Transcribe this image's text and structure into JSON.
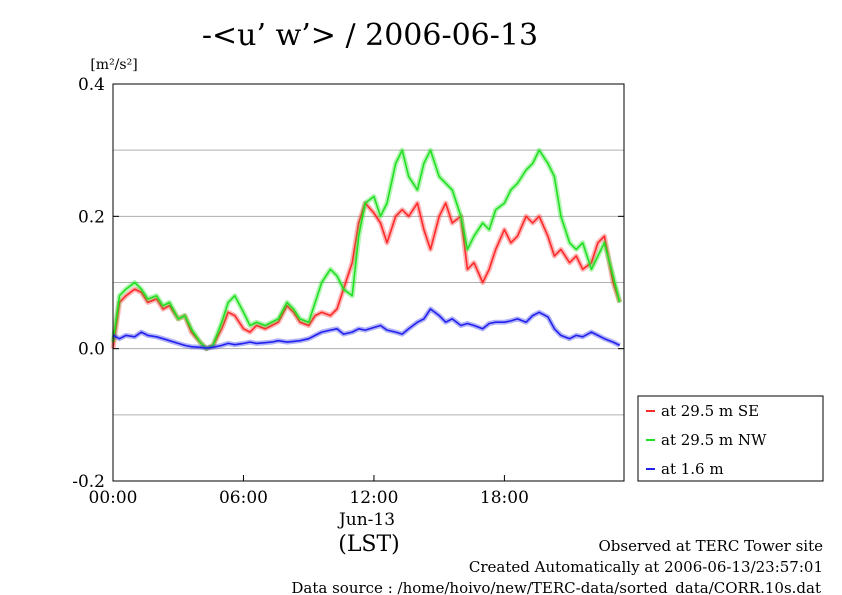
{
  "chart_data": {
    "type": "line",
    "title": "-<u’ w’> / 2006-06-13",
    "ylabel": "[m²/s²]",
    "xlabel": "(LST)",
    "date_label": "Jun-13",
    "xlim": [
      0,
      23.5
    ],
    "ylim": [
      -0.2,
      0.4
    ],
    "x_ticks": [
      0,
      6,
      12,
      18
    ],
    "x_tick_labels": [
      "00:00",
      "06:00",
      "12:00",
      "18:00"
    ],
    "y_ticks": [
      -0.2,
      0.0,
      0.2,
      0.4
    ],
    "y_tick_labels": [
      "-0.2",
      "0.0",
      "0.2",
      "0.4"
    ],
    "grid": "horizontal",
    "legend_position": "right",
    "series": [
      {
        "name": "at 29.5 m SE",
        "color": "#ff2a2a",
        "x": [
          0,
          0.3,
          0.6,
          1,
          1.3,
          1.6,
          2,
          2.3,
          2.6,
          3,
          3.3,
          3.6,
          4,
          4.3,
          4.6,
          5,
          5.3,
          5.6,
          6,
          6.3,
          6.6,
          7,
          7.3,
          7.6,
          8,
          8.3,
          8.6,
          9,
          9.3,
          9.6,
          10,
          10.3,
          10.6,
          11,
          11.3,
          11.6,
          12,
          12.3,
          12.6,
          13,
          13.3,
          13.6,
          14,
          14.3,
          14.6,
          15,
          15.3,
          15.6,
          16,
          16.3,
          16.6,
          17,
          17.3,
          17.6,
          18,
          18.3,
          18.6,
          19,
          19.3,
          19.6,
          20,
          20.3,
          20.6,
          21,
          21.3,
          21.6,
          22,
          22.3,
          22.6,
          23,
          23.3
        ],
        "y": [
          0.0,
          0.07,
          0.08,
          0.09,
          0.085,
          0.07,
          0.075,
          0.06,
          0.065,
          0.045,
          0.05,
          0.025,
          0.01,
          0.0,
          0.005,
          0.03,
          0.055,
          0.05,
          0.03,
          0.025,
          0.035,
          0.03,
          0.035,
          0.04,
          0.065,
          0.055,
          0.04,
          0.035,
          0.05,
          0.055,
          0.05,
          0.06,
          0.09,
          0.13,
          0.19,
          0.22,
          0.205,
          0.19,
          0.16,
          0.2,
          0.21,
          0.2,
          0.22,
          0.18,
          0.15,
          0.2,
          0.22,
          0.19,
          0.2,
          0.12,
          0.13,
          0.1,
          0.12,
          0.15,
          0.18,
          0.16,
          0.17,
          0.2,
          0.19,
          0.2,
          0.17,
          0.14,
          0.15,
          0.13,
          0.14,
          0.12,
          0.13,
          0.16,
          0.17,
          0.1,
          0.07
        ]
      },
      {
        "name": "at 29.5 m NW",
        "color": "#22e022",
        "x": [
          0,
          0.3,
          0.6,
          1,
          1.3,
          1.6,
          2,
          2.3,
          2.6,
          3,
          3.3,
          3.6,
          4,
          4.3,
          4.6,
          5,
          5.3,
          5.6,
          6,
          6.3,
          6.6,
          7,
          7.3,
          7.6,
          8,
          8.3,
          8.6,
          9,
          9.3,
          9.6,
          10,
          10.3,
          10.6,
          11,
          11.3,
          11.6,
          12,
          12.3,
          12.6,
          13,
          13.3,
          13.6,
          14,
          14.3,
          14.6,
          15,
          15.3,
          15.6,
          16,
          16.3,
          16.6,
          17,
          17.3,
          17.6,
          18,
          18.3,
          18.6,
          19,
          19.3,
          19.6,
          20,
          20.3,
          20.6,
          21,
          21.3,
          21.6,
          22,
          22.3,
          22.6,
          23,
          23.3
        ],
        "y": [
          0.01,
          0.08,
          0.09,
          0.1,
          0.09,
          0.075,
          0.08,
          0.065,
          0.07,
          0.045,
          0.05,
          0.03,
          0.01,
          0.0,
          0.005,
          0.04,
          0.07,
          0.08,
          0.055,
          0.035,
          0.04,
          0.035,
          0.04,
          0.045,
          0.07,
          0.06,
          0.045,
          0.04,
          0.07,
          0.1,
          0.12,
          0.11,
          0.09,
          0.08,
          0.17,
          0.22,
          0.23,
          0.2,
          0.22,
          0.28,
          0.3,
          0.26,
          0.24,
          0.28,
          0.3,
          0.26,
          0.25,
          0.24,
          0.2,
          0.15,
          0.17,
          0.19,
          0.18,
          0.21,
          0.22,
          0.24,
          0.25,
          0.27,
          0.28,
          0.3,
          0.28,
          0.26,
          0.2,
          0.16,
          0.15,
          0.16,
          0.12,
          0.14,
          0.16,
          0.11,
          0.07
        ]
      },
      {
        "name": "at 1.6 m",
        "color": "#2222ee",
        "x": [
          0,
          0.3,
          0.6,
          1,
          1.3,
          1.6,
          2,
          2.3,
          2.6,
          3,
          3.3,
          3.6,
          4,
          4.3,
          4.6,
          5,
          5.3,
          5.6,
          6,
          6.3,
          6.6,
          7,
          7.3,
          7.6,
          8,
          8.3,
          8.6,
          9,
          9.3,
          9.6,
          10,
          10.3,
          10.6,
          11,
          11.3,
          11.6,
          12,
          12.3,
          12.6,
          13,
          13.3,
          13.6,
          14,
          14.3,
          14.6,
          15,
          15.3,
          15.6,
          16,
          16.3,
          16.6,
          17,
          17.3,
          17.6,
          18,
          18.3,
          18.6,
          19,
          19.3,
          19.6,
          20,
          20.3,
          20.6,
          21,
          21.3,
          21.6,
          22,
          22.3,
          22.6,
          23,
          23.3
        ],
        "y": [
          0.02,
          0.015,
          0.02,
          0.018,
          0.025,
          0.02,
          0.018,
          0.015,
          0.012,
          0.008,
          0.005,
          0.003,
          0.002,
          0.001,
          0.002,
          0.005,
          0.008,
          0.006,
          0.008,
          0.01,
          0.008,
          0.009,
          0.01,
          0.012,
          0.01,
          0.011,
          0.012,
          0.015,
          0.02,
          0.025,
          0.028,
          0.03,
          0.022,
          0.025,
          0.03,
          0.028,
          0.032,
          0.035,
          0.028,
          0.025,
          0.022,
          0.03,
          0.04,
          0.045,
          0.06,
          0.05,
          0.04,
          0.045,
          0.035,
          0.038,
          0.035,
          0.03,
          0.038,
          0.04,
          0.04,
          0.042,
          0.045,
          0.04,
          0.05,
          0.055,
          0.048,
          0.03,
          0.02,
          0.015,
          0.02,
          0.018,
          0.025,
          0.02,
          0.015,
          0.01,
          0.005
        ]
      }
    ]
  },
  "footer": {
    "line1": "Observed at TERC Tower site",
    "line2": "Created Automatically at 2006-06-13/23:57:01",
    "line3": "Data source : /home/hoivo/new/TERC-data/sorted_data/CORR.10s.dat"
  }
}
